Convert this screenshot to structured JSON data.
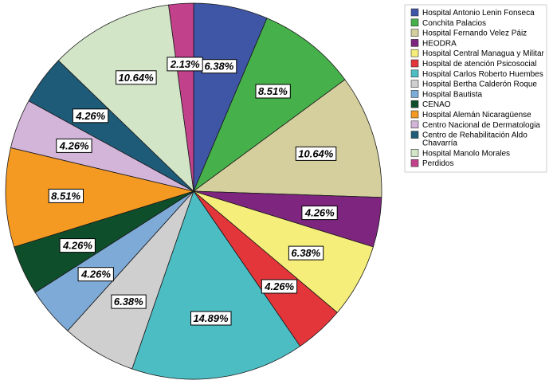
{
  "chart_data": {
    "type": "pie",
    "title": "",
    "start_angle_deg": 0,
    "direction": "clockwise",
    "legend_position": "right",
    "slices": [
      {
        "label": "Hospital Antonio Lenin Fonseca",
        "legend_lines": [
          "Hospital Antonio Lenin Fonseca"
        ],
        "value": 6.38,
        "text": "6.38%",
        "color": "#3f55a6"
      },
      {
        "label": "Conchita Palacios",
        "legend_lines": [
          "Conchita Palacios"
        ],
        "value": 8.51,
        "text": "8.51%",
        "color": "#46b04a"
      },
      {
        "label": "Hospital Fernando Velez Páiz",
        "legend_lines": [
          "Hospital Fernando Velez Páiz"
        ],
        "value": 10.64,
        "text": "10.64%",
        "color": "#d4cf9d"
      },
      {
        "label": "HEODRA",
        "legend_lines": [
          "HEODRA"
        ],
        "value": 4.26,
        "text": "4.26%",
        "color": "#7e2580"
      },
      {
        "label": "Hospital Central Managua y Militar",
        "legend_lines": [
          "Hospital Central Managua y Militar"
        ],
        "value": 6.38,
        "text": "6.38%",
        "color": "#f6ee7a"
      },
      {
        "label": "Hospital de atención Psicosocial",
        "legend_lines": [
          "Hospital de atención Psicosocial"
        ],
        "value": 4.26,
        "text": "4.26%",
        "color": "#e3363a"
      },
      {
        "label": "Hospital Carlos Roberto Huembes",
        "legend_lines": [
          "Hospital Carlos Roberto Huembes"
        ],
        "value": 14.89,
        "text": "14.89%",
        "color": "#4dbdc4"
      },
      {
        "label": "Hospital Bertha Calderón Roque",
        "legend_lines": [
          "Hospital Bertha Calderón Roque"
        ],
        "value": 6.38,
        "text": "6.38%",
        "color": "#cfcfcf"
      },
      {
        "label": "Hospital Bautista",
        "legend_lines": [
          "Hospital Bautista"
        ],
        "value": 4.26,
        "text": "4.26%",
        "color": "#7eaad7"
      },
      {
        "label": "CENAO",
        "legend_lines": [
          "CENAO"
        ],
        "value": 4.26,
        "text": "4.26%",
        "color": "#0f4e2b"
      },
      {
        "label": "Hospital Alemán Nicaragüense",
        "legend_lines": [
          "Hospital Alemán Nicaragüense"
        ],
        "value": 8.51,
        "text": "8.51%",
        "color": "#f49a22"
      },
      {
        "label": "Centro Nacional de Dermatologia",
        "legend_lines": [
          "Centro Nacional de Dermatologia"
        ],
        "value": 4.26,
        "text": "4.26%",
        "color": "#d3b5d9"
      },
      {
        "label": "Centro de Rehabilitación Aldo Chavarría",
        "legend_lines": [
          "Centro de Rehabilitación Aldo",
          "Chavarría"
        ],
        "value": 4.26,
        "text": "4.26%",
        "color": "#1e5b78"
      },
      {
        "label": "Hospital Manolo Morales",
        "legend_lines": [
          "Hospital Manolo Morales"
        ],
        "value": 10.64,
        "text": "10.64%",
        "color": "#d3e5c7"
      },
      {
        "label": "Perdidos",
        "legend_lines": [
          "Perdidos"
        ],
        "value": 2.13,
        "text": "2.13%",
        "color": "#c2418b"
      }
    ]
  }
}
